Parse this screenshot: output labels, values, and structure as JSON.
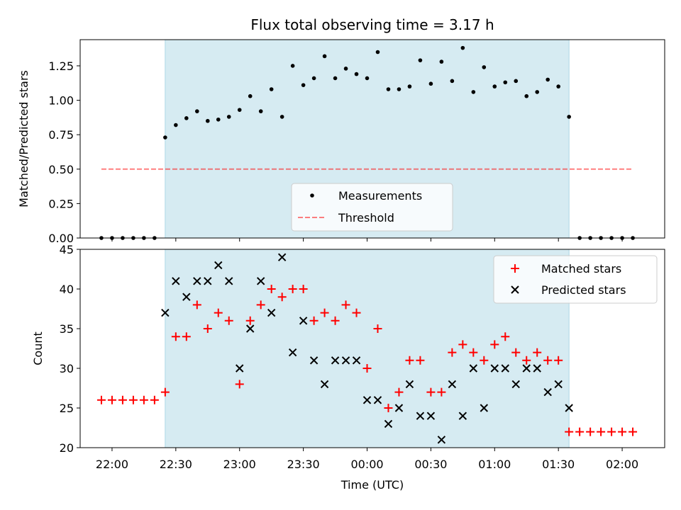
{
  "chart_data": [
    {
      "type": "scatter",
      "title": "Flux total observing time = 3.17 h",
      "xlabel": "",
      "ylabel": "Matched/Predicted stars",
      "xlim": [
        "21:45",
        "02:20"
      ],
      "ylim": [
        0,
        1.44
      ],
      "yticks": [
        "0.00",
        "0.25",
        "0.50",
        "0.75",
        "1.00",
        "1.25"
      ],
      "shaded_span": [
        "22:25",
        "01:35"
      ],
      "series": [
        {
          "name": "Measurements",
          "x": [
            "21:55",
            "22:00",
            "22:05",
            "22:10",
            "22:15",
            "22:20",
            "22:25",
            "22:30",
            "22:35",
            "22:40",
            "22:45",
            "22:50",
            "22:55",
            "23:00",
            "23:05",
            "23:10",
            "23:15",
            "23:20",
            "23:25",
            "23:30",
            "23:35",
            "23:40",
            "23:45",
            "23:50",
            "23:55",
            "00:00",
            "00:05",
            "00:10",
            "00:15",
            "00:20",
            "00:25",
            "00:30",
            "00:35",
            "00:40",
            "00:45",
            "00:50",
            "00:55",
            "01:00",
            "01:05",
            "01:10",
            "01:15",
            "01:20",
            "01:25",
            "01:30",
            "01:35",
            "01:40",
            "01:45",
            "01:50",
            "01:55",
            "02:00",
            "02:05"
          ],
          "y": [
            0,
            0,
            0,
            0,
            0,
            0,
            0.73,
            0.82,
            0.87,
            0.92,
            0.85,
            0.86,
            0.88,
            0.93,
            1.03,
            0.92,
            1.08,
            0.88,
            1.25,
            1.11,
            1.16,
            1.32,
            1.16,
            1.23,
            1.19,
            1.16,
            1.35,
            1.08,
            1.08,
            1.1,
            1.29,
            1.12,
            1.28,
            1.14,
            1.38,
            1.06,
            1.24,
            1.1,
            1.13,
            1.14,
            1.03,
            1.06,
            1.15,
            1.1,
            0.88,
            0,
            0,
            0,
            0,
            0,
            0
          ]
        },
        {
          "name": "Threshold",
          "x": [
            "21:55",
            "02:05"
          ],
          "y": [
            0.5,
            0.5
          ]
        }
      ],
      "legend": "lower-center"
    },
    {
      "type": "scatter",
      "title": "",
      "xlabel": "Time (UTC)",
      "ylabel": "Count",
      "xlim": [
        "21:45",
        "02:20"
      ],
      "ylim": [
        20,
        45
      ],
      "xticks": [
        "22:00",
        "22:30",
        "23:00",
        "23:30",
        "00:00",
        "00:30",
        "01:00",
        "01:30",
        "02:00"
      ],
      "yticks": [
        "20",
        "25",
        "30",
        "35",
        "40",
        "45"
      ],
      "shaded_span": [
        "22:25",
        "01:35"
      ],
      "series": [
        {
          "name": "Matched stars",
          "x": [
            "21:55",
            "22:00",
            "22:05",
            "22:10",
            "22:15",
            "22:20",
            "22:25",
            "22:30",
            "22:35",
            "22:40",
            "22:45",
            "22:50",
            "22:55",
            "23:00",
            "23:05",
            "23:10",
            "23:15",
            "23:20",
            "23:25",
            "23:30",
            "23:35",
            "23:40",
            "23:45",
            "23:50",
            "23:55",
            "00:00",
            "00:05",
            "00:10",
            "00:15",
            "00:20",
            "00:25",
            "00:30",
            "00:35",
            "00:40",
            "00:45",
            "00:50",
            "00:55",
            "01:00",
            "01:05",
            "01:10",
            "01:15",
            "01:20",
            "01:25",
            "01:30",
            "01:35",
            "01:40",
            "01:45",
            "01:50",
            "01:55",
            "02:00",
            "02:05"
          ],
          "y": [
            26,
            26,
            26,
            26,
            26,
            26,
            27,
            34,
            34,
            38,
            35,
            37,
            36,
            28,
            36,
            38,
            40,
            39,
            40,
            40,
            36,
            37,
            36,
            38,
            37,
            30,
            35,
            25,
            27,
            31,
            31,
            27,
            27,
            32,
            33,
            32,
            31,
            33,
            34,
            32,
            31,
            32,
            31,
            31,
            22,
            22,
            22,
            22,
            22,
            22,
            22
          ]
        },
        {
          "name": "Predicted stars",
          "x": [
            "22:25",
            "22:30",
            "22:35",
            "22:40",
            "22:45",
            "22:50",
            "22:55",
            "23:00",
            "23:05",
            "23:10",
            "23:15",
            "23:20",
            "23:25",
            "23:30",
            "23:35",
            "23:40",
            "23:45",
            "23:50",
            "23:55",
            "00:00",
            "00:05",
            "00:10",
            "00:15",
            "00:20",
            "00:25",
            "00:30",
            "00:35",
            "00:40",
            "00:45",
            "00:50",
            "00:55",
            "01:00",
            "01:05",
            "01:10",
            "01:15",
            "01:20",
            "01:25",
            "01:30",
            "01:35"
          ],
          "y": [
            37,
            41,
            39,
            41,
            41,
            43,
            41,
            30,
            35,
            41,
            37,
            44,
            32,
            36,
            31,
            28,
            31,
            31,
            31,
            26,
            26,
            23,
            25,
            28,
            24,
            24,
            21,
            28,
            24,
            30,
            25,
            30,
            30,
            28,
            30,
            30,
            27,
            28,
            25
          ]
        }
      ],
      "legend": "top-right"
    }
  ]
}
